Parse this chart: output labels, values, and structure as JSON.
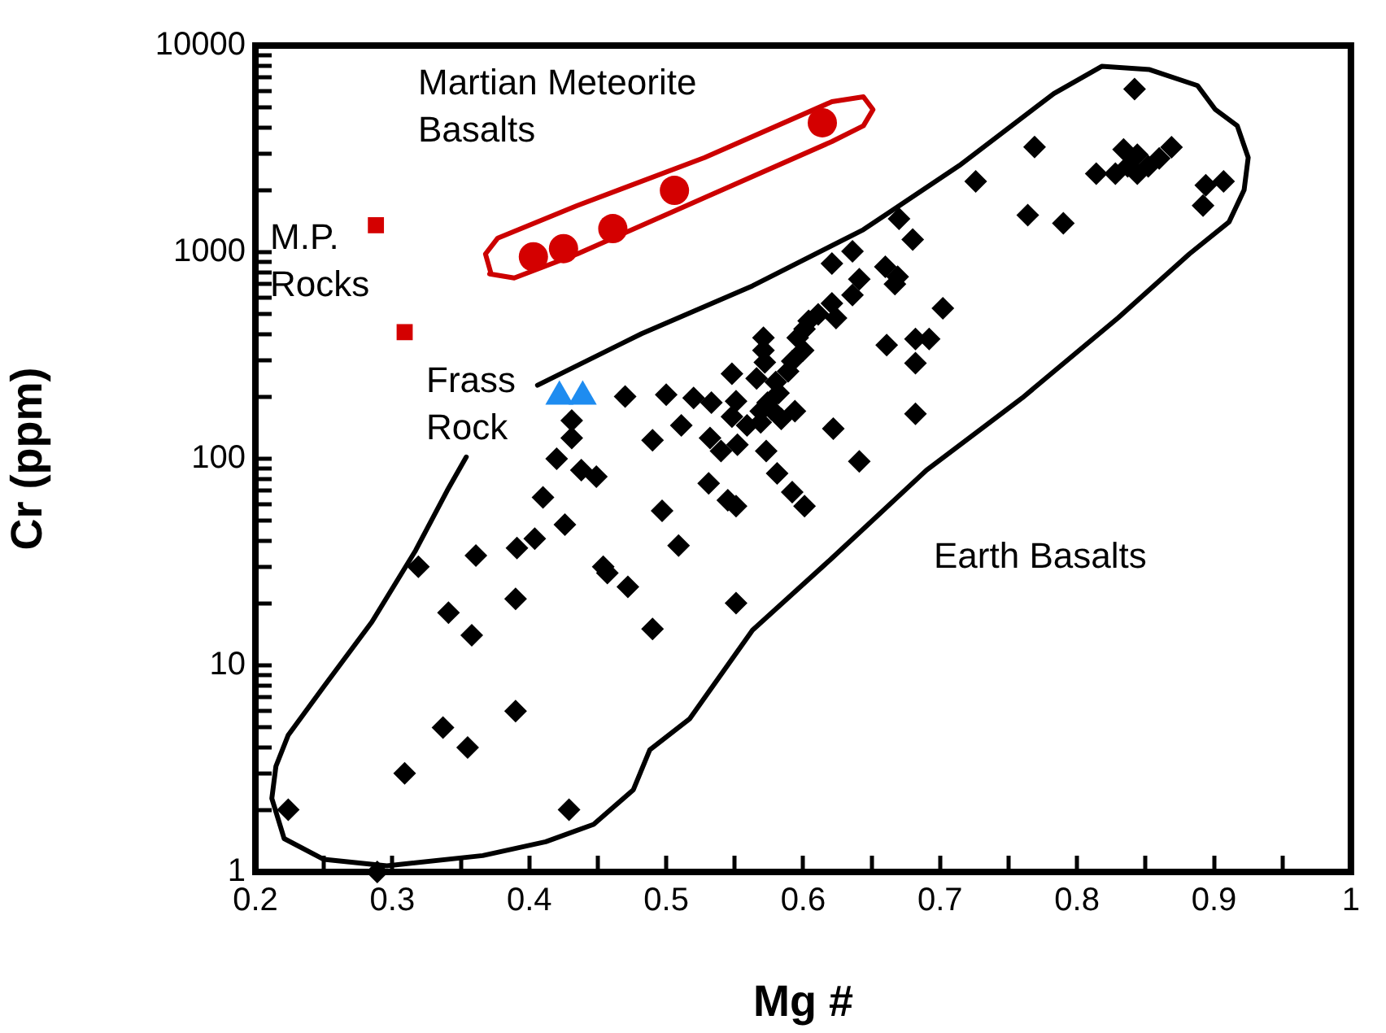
{
  "chart_data": {
    "type": "scatter",
    "xlabel": "Mg #",
    "ylabel": "Cr (ppm)",
    "log": "y",
    "grid": false,
    "legend": false,
    "xlim": [
      0.2,
      1
    ],
    "xticks": [
      0.2,
      {
        "value": 0.25,
        "label": null
      },
      0.3,
      {
        "value": 0.35,
        "label": null
      },
      0.4,
      {
        "value": 0.45,
        "label": null
      },
      0.5,
      {
        "value": 0.55,
        "label": null
      },
      0.6,
      {
        "value": 0.65,
        "label": null
      },
      0.7,
      {
        "value": 0.75,
        "label": null
      },
      0.8,
      {
        "value": 0.85,
        "label": null
      },
      0.9,
      {
        "value": 0.95,
        "label": null
      },
      1
    ],
    "ylim": [
      1,
      10000
    ],
    "yticks": [
      1,
      {
        "value": 2,
        "label": null
      },
      {
        "value": 3,
        "label": null
      },
      {
        "value": 4,
        "label": null
      },
      {
        "value": 5,
        "label": null
      },
      {
        "value": 6,
        "label": null
      },
      {
        "value": 7,
        "label": null
      },
      {
        "value": 8,
        "label": null
      },
      {
        "value": 9,
        "label": null
      },
      10,
      {
        "value": 20,
        "label": null
      },
      {
        "value": 30,
        "label": null
      },
      {
        "value": 40,
        "label": null
      },
      {
        "value": 50,
        "label": null
      },
      {
        "value": 60,
        "label": null
      },
      {
        "value": 70,
        "label": null
      },
      {
        "value": 80,
        "label": null
      },
      {
        "value": 90,
        "label": null
      },
      100,
      {
        "value": 200,
        "label": null
      },
      {
        "value": 300,
        "label": null
      },
      {
        "value": 400,
        "label": null
      },
      {
        "value": 500,
        "label": null
      },
      {
        "value": 600,
        "label": null
      },
      {
        "value": 700,
        "label": null
      },
      {
        "value": 800,
        "label": null
      },
      {
        "value": 900,
        "label": null
      },
      1000,
      {
        "value": 2000,
        "label": null
      },
      {
        "value": 3000,
        "label": null
      },
      {
        "value": 4000,
        "label": null
      },
      {
        "value": 5000,
        "label": null
      },
      {
        "value": 6000,
        "label": null
      },
      {
        "value": 7000,
        "label": null
      },
      {
        "value": 8000,
        "label": null
      },
      {
        "value": 9000,
        "label": null
      },
      10000
    ],
    "series": [
      {
        "name": "Earth Basalts",
        "color": "#000000",
        "marker": "diamond",
        "x": [
          0.224,
          0.289,
          0.309,
          0.319,
          0.337,
          0.341,
          0.355,
          0.358,
          0.361,
          0.39,
          0.39,
          0.391,
          0.404,
          0.41,
          0.42,
          0.426,
          0.429,
          0.431,
          0.431,
          0.438,
          0.449,
          0.454,
          0.457,
          0.472,
          0.49,
          0.497,
          0.509,
          0.47,
          0.5,
          0.52,
          0.533,
          0.49,
          0.511,
          0.532,
          0.531,
          0.551,
          0.726,
          0.67,
          0.68,
          0.636,
          0.621,
          0.66,
          0.669,
          0.667,
          0.641,
          0.636,
          0.621,
          0.624,
          0.611,
          0.604,
          0.601,
          0.596,
          0.702,
          0.661,
          0.682,
          0.692,
          0.682,
          0.682,
          0.571,
          0.571,
          0.572,
          0.6,
          0.592,
          0.589,
          0.548,
          0.566,
          0.58,
          0.582,
          0.551,
          0.574,
          0.548,
          0.569,
          0.577,
          0.594,
          0.559,
          0.569,
          0.584,
          0.552,
          0.54,
          0.622,
          0.573,
          0.581,
          0.592,
          0.545,
          0.551,
          0.601,
          0.641,
          0.842,
          0.769,
          0.764,
          0.79,
          0.814,
          0.828,
          0.834,
          0.844,
          0.844,
          0.852,
          0.86,
          0.869,
          0.837,
          0.894,
          0.907,
          0.892
        ],
        "values": [
          2,
          1,
          3,
          30,
          5,
          18,
          4,
          14,
          34,
          6,
          21,
          37,
          41,
          65,
          100,
          48,
          2,
          153,
          126,
          88,
          82,
          30,
          28,
          24,
          15,
          56,
          38,
          200,
          204,
          197,
          187,
          123,
          145,
          126,
          76,
          20,
          2200,
          1450,
          1150,
          1010,
          880,
          850,
          760,
          700,
          740,
          620,
          565,
          480,
          500,
          465,
          425,
          385,
          535,
          355,
          380,
          380,
          290,
          165,
          385,
          335,
          293,
          335,
          297,
          265,
          258,
          245,
          235,
          208,
          190,
          187,
          160,
          170,
          173,
          170,
          145,
          150,
          156,
          117,
          109,
          140,
          109,
          85,
          69,
          63,
          59,
          59,
          97,
          6160,
          3230,
          1510,
          1380,
          2400,
          2400,
          3140,
          2960,
          2400,
          2600,
          2840,
          3220,
          2600,
          2110,
          2200,
          1680
        ]
      },
      {
        "name": "Martian Meteorite Basalts",
        "color": "#d40000",
        "marker": "circle",
        "x": [
          0.403,
          0.425,
          0.461,
          0.506,
          0.614
        ],
        "values": [
          950,
          1040,
          1300,
          1990,
          4230
        ]
      },
      {
        "name": "M.P. Rocks",
        "color": "#d40000",
        "marker": "square",
        "x": [
          0.288,
          0.309
        ],
        "values": [
          1350,
          410
        ]
      },
      {
        "name": "Frass Rock",
        "color": "#1e8cf0",
        "marker": "triangle",
        "x": [
          0.422,
          0.439
        ],
        "values": [
          200,
          200
        ]
      },
      {
        "type": "line",
        "color": "#000000",
        "marker": "none",
        "x": [
          0.406,
          0.482,
          0.563,
          0.644,
          0.714,
          0.783,
          0.818,
          0.853,
          0.888,
          0.901,
          0.917,
          0.925,
          0.922,
          0.911,
          0.882,
          0.83,
          0.76,
          0.69,
          0.621,
          0.563,
          0.517,
          0.488,
          0.476,
          0.447,
          0.412,
          0.366,
          0.296,
          0.25,
          0.221,
          0.212,
          0.215,
          0.224,
          0.25,
          0.285,
          0.317,
          0.34,
          0.354
        ],
        "values": [
          227,
          403,
          687,
          1285,
          2624,
          5850,
          7930,
          7650,
          6400,
          4900,
          4090,
          2870,
          2000,
          1400,
          980,
          481,
          197,
          88,
          33,
          14.8,
          5.5,
          3.9,
          2.5,
          1.7,
          1.4,
          1.2,
          1.07,
          1.15,
          1.45,
          2.27,
          3.25,
          4.6,
          7.9,
          16.2,
          36,
          70,
          102
        ]
      },
      {
        "type": "line",
        "color": "#cc0000",
        "marker": "none",
        "x": [
          0.372,
          0.368,
          0.377,
          0.435,
          0.528,
          0.621,
          0.644,
          0.651,
          0.644,
          0.621,
          0.528,
          0.435,
          0.389,
          0.371
        ],
        "values": [
          790,
          980,
          1170,
          1680,
          2870,
          5350,
          5650,
          4900,
          4090,
          3430,
          1835,
          980,
          750,
          785
        ]
      }
    ]
  }
}
